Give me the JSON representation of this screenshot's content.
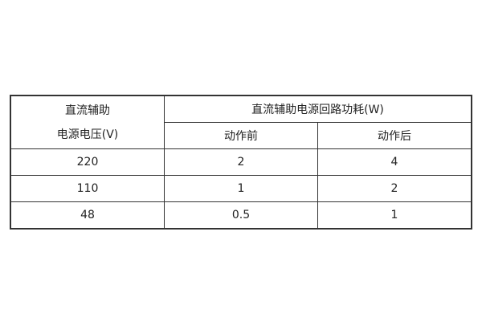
{
  "table": {
    "header": {
      "voltage_line1": "直流辅助",
      "voltage_line2": "电源电压(V)",
      "power": "直流辅助电源回路功耗(W)",
      "before": "动作前",
      "after": "动作后"
    },
    "rows": [
      {
        "voltage": "220",
        "before": "2",
        "after": "4"
      },
      {
        "voltage": "110",
        "before": "1",
        "after": "2"
      },
      {
        "voltage": "48",
        "before": "0.5",
        "after": "1"
      }
    ]
  }
}
